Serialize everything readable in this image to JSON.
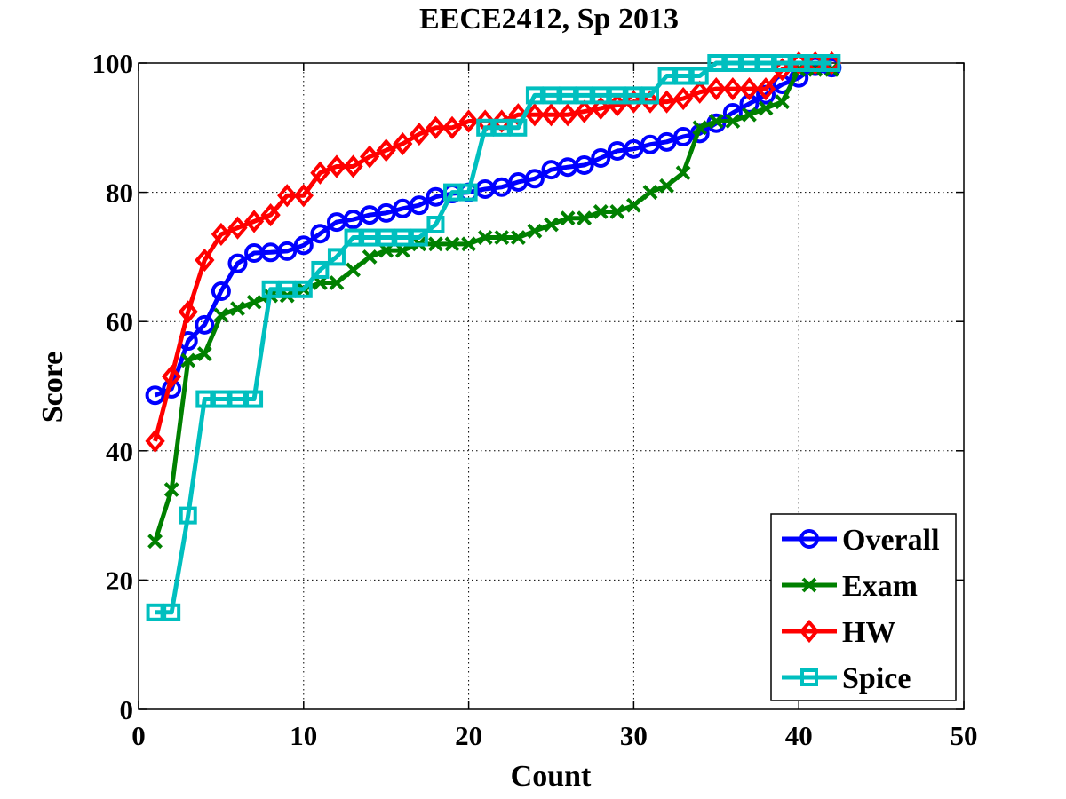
{
  "chart_data": {
    "type": "line",
    "title": "EECE2412, Sp 2013",
    "xlabel": "Count",
    "ylabel": "Score",
    "xlim": [
      0,
      50
    ],
    "ylim": [
      0,
      100
    ],
    "xticks": [
      "0",
      "10",
      "20",
      "30",
      "40",
      "50"
    ],
    "yticks": [
      "0",
      "20",
      "40",
      "60",
      "80",
      "100"
    ],
    "grid": true,
    "legend_position": "bottom-right",
    "x": [
      1,
      2,
      3,
      4,
      5,
      6,
      7,
      8,
      9,
      10,
      11,
      12,
      13,
      14,
      15,
      16,
      17,
      18,
      19,
      20,
      21,
      22,
      23,
      24,
      25,
      26,
      27,
      28,
      29,
      30,
      31,
      32,
      33,
      34,
      35,
      36,
      37,
      38,
      39,
      40,
      41,
      42
    ],
    "series": [
      {
        "name": "Overall",
        "color": "#0000ff",
        "marker": "circle",
        "values": [
          48.6,
          49.6,
          57,
          59.5,
          64.7,
          69,
          70.6,
          70.7,
          70.9,
          71.8,
          73.6,
          75.4,
          75.8,
          76.5,
          76.8,
          77.5,
          78,
          79.3,
          79.8,
          80,
          80.5,
          80.8,
          81.6,
          82.1,
          83.5,
          83.9,
          84.2,
          85.3,
          86.4,
          86.7,
          87.4,
          87.8,
          88.6,
          89.1,
          90.7,
          92.3,
          93.7,
          95.1,
          96.7,
          97.7,
          99.5,
          99.3
        ]
      },
      {
        "name": "Exam",
        "color": "#008000",
        "marker": "x",
        "values": [
          26,
          34,
          54,
          55,
          61,
          62,
          63,
          64,
          64,
          65,
          66,
          66,
          68,
          70,
          71,
          71,
          72,
          72,
          72,
          72,
          73,
          73,
          73,
          74,
          75,
          76,
          76,
          77,
          77,
          78,
          80,
          81,
          83,
          90,
          91,
          91,
          92,
          93,
          94,
          99,
          99,
          99
        ]
      },
      {
        "name": "HW",
        "color": "#ff0000",
        "marker": "diamond",
        "values": [
          41.5,
          51.5,
          61.5,
          69.5,
          73.5,
          74.5,
          75.5,
          76.5,
          79.5,
          79.5,
          83,
          84,
          84,
          85.5,
          86.5,
          87.5,
          89,
          90,
          90,
          91,
          91,
          91,
          92,
          92,
          92,
          92,
          92.5,
          93,
          93.5,
          94,
          94,
          94,
          94.5,
          95.5,
          96,
          96,
          96,
          96,
          99,
          100,
          100,
          100
        ]
      },
      {
        "name": "Spice",
        "color": "#00bfbf",
        "marker": "square",
        "values": [
          15,
          15,
          30,
          48,
          48,
          48,
          48,
          65,
          65,
          65,
          68,
          70,
          73,
          73,
          73,
          73,
          73,
          75,
          80,
          80,
          90,
          90,
          90,
          95,
          95,
          95,
          95,
          95,
          95,
          95,
          95,
          98,
          98,
          98,
          100,
          100,
          100,
          100,
          100,
          100,
          100,
          100
        ]
      }
    ]
  }
}
